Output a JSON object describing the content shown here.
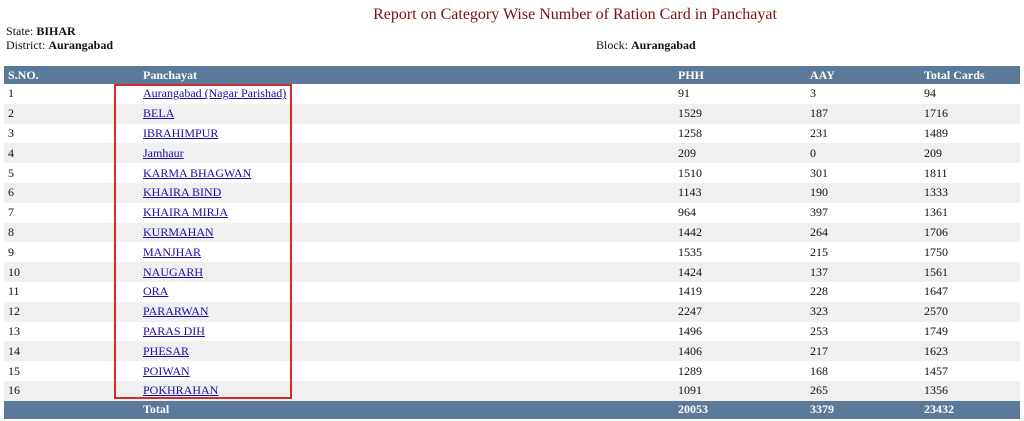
{
  "title": "Report on Category Wise Number of Ration Card in Panchayat",
  "meta": {
    "state_label": "State:",
    "state_value": "BIHAR",
    "district_label": "District:",
    "district_value": "Aurangabad",
    "block_label": "Block:",
    "block_value": "Aurangabad"
  },
  "table": {
    "headers": [
      "S.NO.",
      "Panchayat",
      "PHH",
      "AAY",
      "Total Cards"
    ],
    "rows": [
      {
        "sno": "1",
        "panchayat": "Aurangabad (Nagar Parishad)",
        "phh": "91",
        "aay": "3",
        "total": "94"
      },
      {
        "sno": "2",
        "panchayat": "BELA",
        "phh": "1529",
        "aay": "187",
        "total": "1716"
      },
      {
        "sno": "3",
        "panchayat": "IBRAHIMPUR",
        "phh": "1258",
        "aay": "231",
        "total": "1489"
      },
      {
        "sno": "4",
        "panchayat": "Jamhaur",
        "phh": "209",
        "aay": "0",
        "total": "209"
      },
      {
        "sno": "5",
        "panchayat": "KARMA BHAGWAN",
        "phh": "1510",
        "aay": "301",
        "total": "1811"
      },
      {
        "sno": "6",
        "panchayat": "KHAIRA BIND",
        "phh": "1143",
        "aay": "190",
        "total": "1333"
      },
      {
        "sno": "7",
        "panchayat": "KHAIRA MIRJA",
        "phh": "964",
        "aay": "397",
        "total": "1361"
      },
      {
        "sno": "8",
        "panchayat": "KURMAHAN",
        "phh": "1442",
        "aay": "264",
        "total": "1706"
      },
      {
        "sno": "9",
        "panchayat": "MANJHAR",
        "phh": "1535",
        "aay": "215",
        "total": "1750"
      },
      {
        "sno": "10",
        "panchayat": "NAUGARH",
        "phh": "1424",
        "aay": "137",
        "total": "1561"
      },
      {
        "sno": "11",
        "panchayat": "ORA",
        "phh": "1419",
        "aay": "228",
        "total": "1647"
      },
      {
        "sno": "12",
        "panchayat": "PARARWAN",
        "phh": "2247",
        "aay": "323",
        "total": "2570"
      },
      {
        "sno": "13",
        "panchayat": "PARAS DIH",
        "phh": "1496",
        "aay": "253",
        "total": "1749"
      },
      {
        "sno": "14",
        "panchayat": "PHESAR",
        "phh": "1406",
        "aay": "217",
        "total": "1623"
      },
      {
        "sno": "15",
        "panchayat": "POIWAN",
        "phh": "1289",
        "aay": "168",
        "total": "1457"
      },
      {
        "sno": "16",
        "panchayat": "POKHRAHAN",
        "phh": "1091",
        "aay": "265",
        "total": "1356"
      }
    ],
    "footer": {
      "label": "Total",
      "phh": "20053",
      "aay": "3379",
      "total": "23432"
    }
  },
  "colors": {
    "title": "#7a1010",
    "header_bg": "#5b7a9a",
    "link": "#1a0dab",
    "highlight_border": "#d42a2a",
    "alt_row": "#f0f0f0"
  }
}
